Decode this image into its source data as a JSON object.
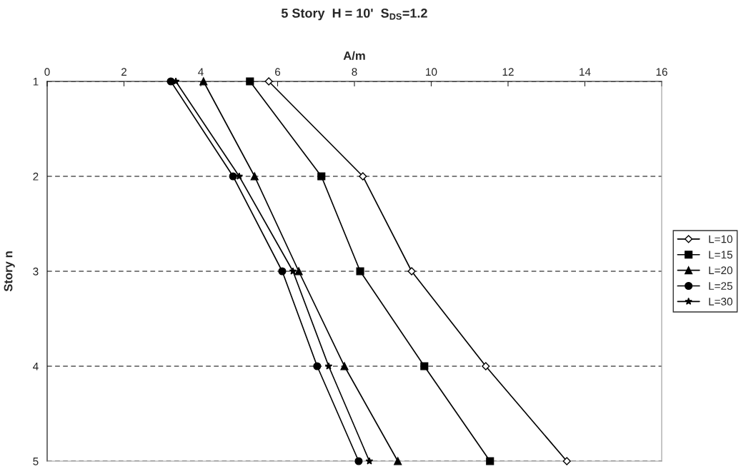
{
  "chart_data": {
    "type": "line",
    "title": "5 Story  H = 10'  S$_{DS}$=1.2",
    "xlabel": "A/m",
    "ylabel": "Story n",
    "xlim": [
      0,
      16
    ],
    "xticks": [
      0,
      2,
      4,
      6,
      8,
      10,
      12,
      14,
      16
    ],
    "ylim": [
      5,
      1
    ],
    "yticks": [
      1,
      2,
      3,
      4,
      5
    ],
    "grid": "y",
    "legend": "right",
    "series": [
      {
        "name": "L=10",
        "color": "#000000",
        "marker": "diamond",
        "x": [
          5.77,
          8.22,
          9.49,
          11.42,
          13.53
        ],
        "values": [
          1,
          2,
          3,
          4,
          5
        ]
      },
      {
        "name": "L=15",
        "color": "#000000",
        "marker": "square",
        "x": [
          5.28,
          7.14,
          8.15,
          9.82,
          11.53
        ],
        "values": [
          1,
          2,
          3,
          4,
          5
        ]
      },
      {
        "name": "L=20",
        "color": "#000000",
        "marker": "triangle",
        "x": [
          4.07,
          5.4,
          6.55,
          7.74,
          9.13
        ],
        "values": [
          1,
          2,
          3,
          4,
          5
        ]
      },
      {
        "name": "L=25",
        "color": "#000000",
        "marker": "circle",
        "x": [
          3.22,
          4.84,
          6.12,
          7.03,
          8.11
        ],
        "values": [
          1,
          2,
          3,
          4,
          5
        ]
      },
      {
        "name": "L=30",
        "color": "#000000",
        "marker": "star",
        "x": [
          3.35,
          5.0,
          6.4,
          7.33,
          8.39
        ],
        "values": [
          1,
          2,
          3,
          4,
          5
        ]
      }
    ]
  }
}
